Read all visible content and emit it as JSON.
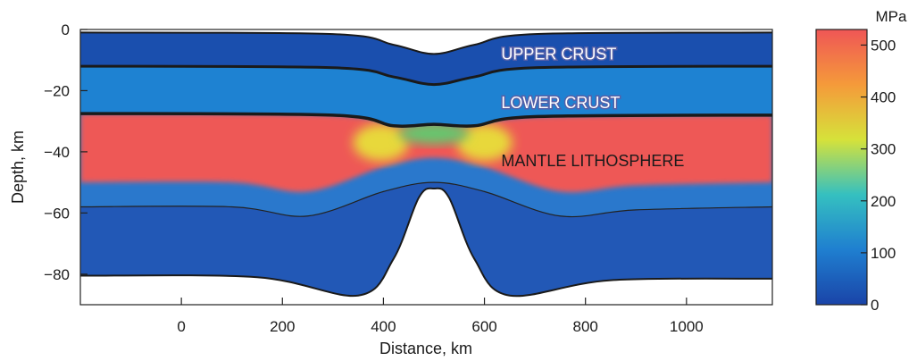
{
  "chart_data": {
    "type": "heatmap",
    "xlabel": "Distance, km",
    "ylabel": "Depth, km",
    "xlim": [
      -200,
      1170
    ],
    "ylim": [
      -90,
      0
    ],
    "x_ticks": [
      0,
      200,
      400,
      600,
      800,
      1000
    ],
    "y_ticks": [
      0,
      -20,
      -40,
      -60,
      -80
    ],
    "layers": [
      {
        "name": "UPPER CRUST",
        "x": 810,
        "y": -8
      },
      {
        "name": "LOWER CRUST",
        "x": 810,
        "y": -24
      },
      {
        "name": "MANTLE LITHOSPHERE",
        "x": 810,
        "y": -43
      }
    ],
    "colorbar": {
      "unit": "MPa",
      "range": [
        0,
        530
      ],
      "ticks": [
        0,
        100,
        200,
        300,
        400,
        500
      ],
      "colors": [
        "#1a44a8",
        "#1f7fd0",
        "#35c0c0",
        "#d6e23a",
        "#f59a3a",
        "#ef5656"
      ]
    },
    "boundaries": {
      "surface": [
        [
          -200,
          -1
        ],
        [
          300,
          -1.5
        ],
        [
          420,
          -5
        ],
        [
          500,
          -8
        ],
        [
          580,
          -5
        ],
        [
          700,
          -1.5
        ],
        [
          1170,
          -1
        ]
      ],
      "upper_crust_base": [
        [
          -200,
          -12
        ],
        [
          300,
          -12.5
        ],
        [
          420,
          -15.5
        ],
        [
          500,
          -18
        ],
        [
          580,
          -15.5
        ],
        [
          700,
          -12.5
        ],
        [
          1170,
          -12
        ]
      ],
      "moho": [
        [
          -200,
          -27.5
        ],
        [
          300,
          -28
        ],
        [
          420,
          -31.5
        ],
        [
          500,
          -31
        ],
        [
          580,
          -31.5
        ],
        [
          700,
          -28.5
        ],
        [
          1170,
          -28
        ]
      ],
      "lithosphere_base": [
        [
          -200,
          -58
        ],
        [
          100,
          -58
        ],
        [
          250,
          -61
        ],
        [
          400,
          -53
        ],
        [
          500,
          -50
        ],
        [
          600,
          -53
        ],
        [
          750,
          -61
        ],
        [
          900,
          -59
        ],
        [
          1170,
          -58
        ]
      ],
      "model_base": [
        [
          -200,
          -80.5
        ],
        [
          150,
          -81
        ],
        [
          350,
          -87
        ],
        [
          420,
          -75
        ],
        [
          470,
          -55
        ],
        [
          500,
          -52
        ],
        [
          530,
          -55
        ],
        [
          580,
          -75
        ],
        [
          650,
          -87
        ],
        [
          850,
          -82
        ],
        [
          1170,
          -81.5
        ]
      ]
    }
  }
}
